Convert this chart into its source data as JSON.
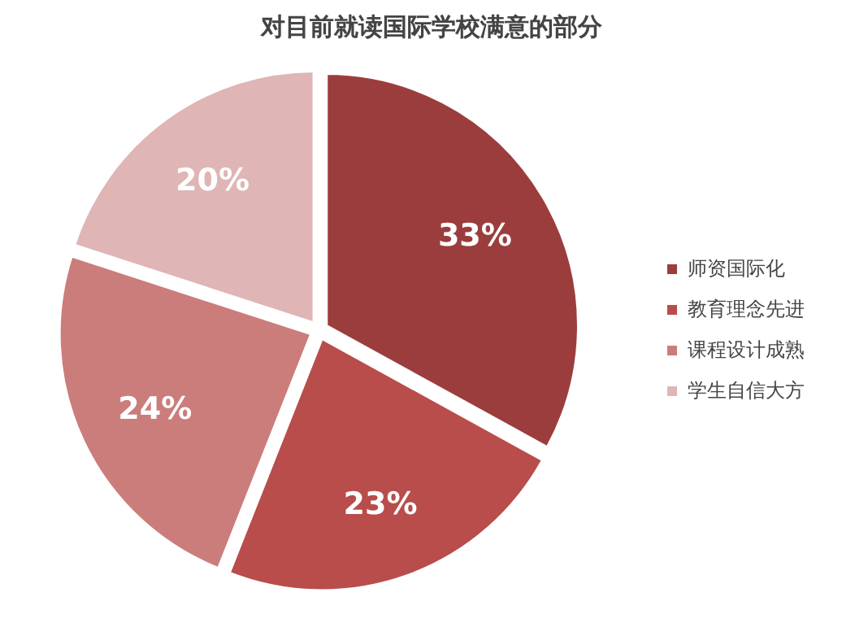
{
  "chart_data": {
    "type": "pie",
    "title": "对目前就读国际学校满意的部分",
    "categories": [
      "师资国际化",
      "教育理念先进",
      "课程设计成熟",
      "学生自信大方"
    ],
    "values": [
      33,
      23,
      24,
      20
    ],
    "colors": [
      "#9b3d3d",
      "#b84d4b",
      "#cb7d7b",
      "#dfb5b5"
    ],
    "value_labels": [
      "33%",
      "23%",
      "24%",
      "20%"
    ],
    "legend": "right"
  }
}
